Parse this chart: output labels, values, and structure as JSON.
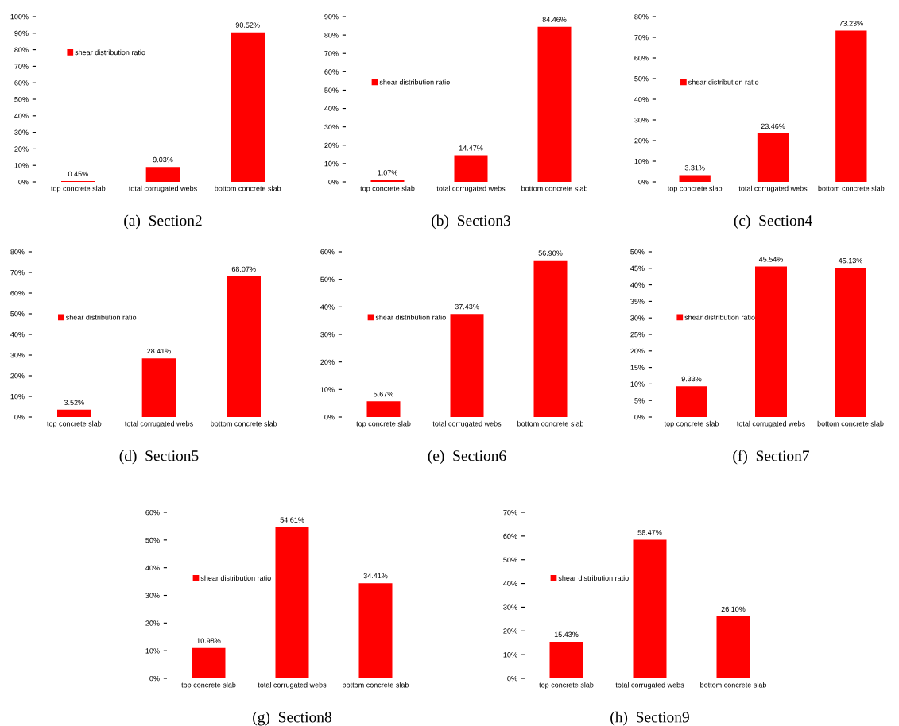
{
  "chart_data": [
    {
      "type": "bar",
      "title": "(a)  Section2",
      "categories": [
        "top concrete slab",
        "total corrugated webs",
        "bottom concrete slab"
      ],
      "series": [
        {
          "name": "shear distribution ratio",
          "color": "#ff0000",
          "values": [
            0.45,
            9.03,
            90.52
          ],
          "value_labels": [
            "0.45%",
            "9.03%",
            "90.52%"
          ]
        }
      ],
      "ylim": [
        0,
        100
      ],
      "yticks": [
        {
          "value": 0,
          "label": "0%"
        },
        {
          "value": 10,
          "label": "10%"
        },
        {
          "value": 20,
          "label": "20%"
        },
        {
          "value": 30,
          "label": "30%"
        },
        {
          "value": 40,
          "label": "40%"
        },
        {
          "value": 50,
          "label": "50%"
        },
        {
          "value": 60,
          "label": "60%"
        },
        {
          "value": 70,
          "label": "70%"
        },
        {
          "value": 80,
          "label": "80%"
        },
        {
          "value": 90,
          "label": "90%"
        },
        {
          "value": 100,
          "label": "100%"
        }
      ],
      "legend": "top left",
      "grid": false
    },
    {
      "type": "bar",
      "title": "(b)  Section3",
      "categories": [
        "top concrete slab",
        "total corrugated webs",
        "bottom concrete slab"
      ],
      "series": [
        {
          "name": "shear distribution ratio",
          "color": "#ff0000",
          "values": [
            1.07,
            14.47,
            84.46
          ],
          "value_labels": [
            "1.07%",
            "14.47%",
            "84.46%"
          ]
        }
      ],
      "ylim": [
        0,
        90
      ],
      "yticks": [
        {
          "value": 0,
          "label": "0%"
        },
        {
          "value": 10,
          "label": "10%"
        },
        {
          "value": 20,
          "label": "20%"
        },
        {
          "value": 30,
          "label": "30%"
        },
        {
          "value": 40,
          "label": "40%"
        },
        {
          "value": 50,
          "label": "50%"
        },
        {
          "value": 60,
          "label": "60%"
        },
        {
          "value": 70,
          "label": "70%"
        },
        {
          "value": 80,
          "label": "80%"
        },
        {
          "value": 90,
          "label": "90%"
        }
      ],
      "legend": "left",
      "grid": false
    },
    {
      "type": "bar",
      "title": "(c)  Section4",
      "categories": [
        "top concrete slab",
        "total corrugated webs",
        "bottom concrete slab"
      ],
      "series": [
        {
          "name": "shear distribution ratio",
          "color": "#ff0000",
          "values": [
            3.31,
            23.46,
            73.23
          ],
          "value_labels": [
            "3.31%",
            "23.46%",
            "73.23%"
          ]
        }
      ],
      "ylim": [
        0,
        80
      ],
      "yticks": [
        {
          "value": 0,
          "label": "0%"
        },
        {
          "value": 10,
          "label": "10%"
        },
        {
          "value": 20,
          "label": "20%"
        },
        {
          "value": 30,
          "label": "30%"
        },
        {
          "value": 40,
          "label": "40%"
        },
        {
          "value": 50,
          "label": "50%"
        },
        {
          "value": 60,
          "label": "60%"
        },
        {
          "value": 70,
          "label": "70%"
        },
        {
          "value": 80,
          "label": "80%"
        }
      ],
      "legend": "left",
      "grid": false
    },
    {
      "type": "bar",
      "title": "(d)  Section5",
      "categories": [
        "top concrete slab",
        "total corrugated webs",
        "bottom concrete slab"
      ],
      "series": [
        {
          "name": "shear distribution ratio",
          "color": "#ff0000",
          "values": [
            3.52,
            28.41,
            68.07
          ],
          "value_labels": [
            "3.52%",
            "28.41%",
            "68.07%"
          ]
        }
      ],
      "ylim": [
        0,
        80
      ],
      "yticks": [
        {
          "value": 0,
          "label": "0%"
        },
        {
          "value": 10,
          "label": "10%"
        },
        {
          "value": 20,
          "label": "20%"
        },
        {
          "value": 30,
          "label": "30%"
        },
        {
          "value": 40,
          "label": "40%"
        },
        {
          "value": 50,
          "label": "50%"
        },
        {
          "value": 60,
          "label": "60%"
        },
        {
          "value": 70,
          "label": "70%"
        },
        {
          "value": 80,
          "label": "80%"
        }
      ],
      "legend": "left",
      "grid": false
    },
    {
      "type": "bar",
      "title": "(e)  Section6",
      "categories": [
        "top concrete slab",
        "total corrugated webs",
        "bottom concrete slab"
      ],
      "series": [
        {
          "name": "shear distribution ratio",
          "color": "#ff0000",
          "values": [
            5.67,
            37.43,
            56.9
          ],
          "value_labels": [
            "5.67%",
            "37.43%",
            "56.90%"
          ]
        }
      ],
      "ylim": [
        0,
        60
      ],
      "yticks": [
        {
          "value": 0,
          "label": "0%"
        },
        {
          "value": 10,
          "label": "10%"
        },
        {
          "value": 20,
          "label": "20%"
        },
        {
          "value": 30,
          "label": "30%"
        },
        {
          "value": 40,
          "label": "40%"
        },
        {
          "value": 50,
          "label": "50%"
        },
        {
          "value": 60,
          "label": "60%"
        }
      ],
      "legend": "left",
      "grid": false
    },
    {
      "type": "bar",
      "title": "(f)  Section7",
      "categories": [
        "top concrete slab",
        "total corrugated webs",
        "bottom concrete slab"
      ],
      "series": [
        {
          "name": "shear distribution ratio",
          "color": "#ff0000",
          "values": [
            9.33,
            45.54,
            45.13
          ],
          "value_labels": [
            "9.33%",
            "45.54%",
            "45.13%"
          ]
        }
      ],
      "ylim": [
        0,
        50
      ],
      "yticks": [
        {
          "value": 0,
          "label": "0%"
        },
        {
          "value": 5,
          "label": "5%"
        },
        {
          "value": 10,
          "label": "10%"
        },
        {
          "value": 15,
          "label": "15%"
        },
        {
          "value": 20,
          "label": "20%"
        },
        {
          "value": 25,
          "label": "25%"
        },
        {
          "value": 30,
          "label": "30%"
        },
        {
          "value": 35,
          "label": "35%"
        },
        {
          "value": 40,
          "label": "40%"
        },
        {
          "value": 45,
          "label": "45%"
        },
        {
          "value": 50,
          "label": "50%"
        }
      ],
      "legend": "left",
      "grid": false
    },
    {
      "type": "bar",
      "title": "(g)  Section8",
      "categories": [
        "top concrete slab",
        "total corrugated webs",
        "bottom concrete slab"
      ],
      "series": [
        {
          "name": "shear distribution ratio",
          "color": "#ff0000",
          "values": [
            10.98,
            54.61,
            34.41
          ],
          "value_labels": [
            "10.98%",
            "54.61%",
            "34.41%"
          ]
        }
      ],
      "ylim": [
        0,
        60
      ],
      "yticks": [
        {
          "value": 0,
          "label": "0%"
        },
        {
          "value": 10,
          "label": "10%"
        },
        {
          "value": 20,
          "label": "20%"
        },
        {
          "value": 30,
          "label": "30%"
        },
        {
          "value": 40,
          "label": "40%"
        },
        {
          "value": 50,
          "label": "50%"
        },
        {
          "value": 60,
          "label": "60%"
        }
      ],
      "legend": "left",
      "grid": false
    },
    {
      "type": "bar",
      "title": "(h)  Section9",
      "categories": [
        "top concrete slab",
        "total corrugated webs",
        "bottom concrete slab"
      ],
      "series": [
        {
          "name": "shear distribution ratio",
          "color": "#ff0000",
          "values": [
            15.43,
            58.47,
            26.1
          ],
          "value_labels": [
            "15.43%",
            "58.47%",
            "26.10%"
          ]
        }
      ],
      "ylim": [
        0,
        70
      ],
      "yticks": [
        {
          "value": 0,
          "label": "0%"
        },
        {
          "value": 10,
          "label": "10%"
        },
        {
          "value": 20,
          "label": "20%"
        },
        {
          "value": 30,
          "label": "30%"
        },
        {
          "value": 40,
          "label": "40%"
        },
        {
          "value": 50,
          "label": "50%"
        },
        {
          "value": 60,
          "label": "60%"
        },
        {
          "value": 70,
          "label": "70%"
        }
      ],
      "legend": "left",
      "grid": false
    }
  ]
}
